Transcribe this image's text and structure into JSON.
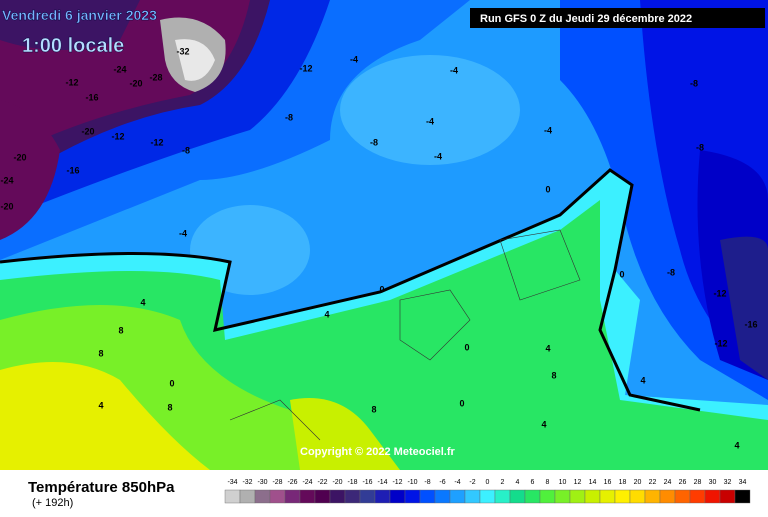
{
  "header": {
    "date": "Vendredi 6 janvier 2023",
    "time": "1:00 locale",
    "run": "Run GFS 0 Z du Jeudi 29 décembre 2022"
  },
  "map": {
    "copyright": "Copyright © 2022 Meteociel.fr",
    "contour_labels": [
      -12,
      -16,
      -20,
      -12,
      -20,
      -16,
      -24,
      -20,
      -24,
      -28,
      -20,
      -32,
      -12,
      -8,
      -12,
      -8,
      -4,
      -4,
      -4,
      -8,
      -4,
      -4,
      -4,
      -8,
      -8,
      0,
      0,
      4,
      4,
      8,
      8,
      4,
      8,
      0,
      0,
      4,
      8,
      4,
      8,
      -8,
      -12,
      -16,
      -12,
      0,
      4,
      4,
      0
    ]
  },
  "footer": {
    "title": "Température 850hPa",
    "lead": "(+ 192h)"
  },
  "scale": {
    "values": [
      -34,
      -32,
      -30,
      -28,
      -26,
      -24,
      -22,
      -20,
      -18,
      -16,
      -14,
      -12,
      -10,
      -8,
      -6,
      -4,
      -2,
      0,
      2,
      4,
      6,
      8,
      10,
      12,
      14,
      16,
      18,
      20,
      22,
      24,
      26,
      28,
      30,
      32,
      34
    ],
    "colors": [
      "#d0d0d0",
      "#b0b0b0",
      "#8c6e8c",
      "#a0508c",
      "#782878",
      "#640a5a",
      "#500050",
      "#3c1464",
      "#3c2878",
      "#323c96",
      "#1e1eb4",
      "#0000c8",
      "#0014e6",
      "#0050ff",
      "#0a78ff",
      "#1ea0ff",
      "#32c8ff",
      "#3cf0ff",
      "#28f0c8",
      "#14dc8c",
      "#28e664",
      "#50f03c",
      "#78f028",
      "#a0f014",
      "#c8f000",
      "#e6f000",
      "#fff000",
      "#ffdc00",
      "#ffb400",
      "#ff8c00",
      "#ff6400",
      "#ff3c00",
      "#f01400",
      "#c80000",
      "#000000"
    ]
  }
}
